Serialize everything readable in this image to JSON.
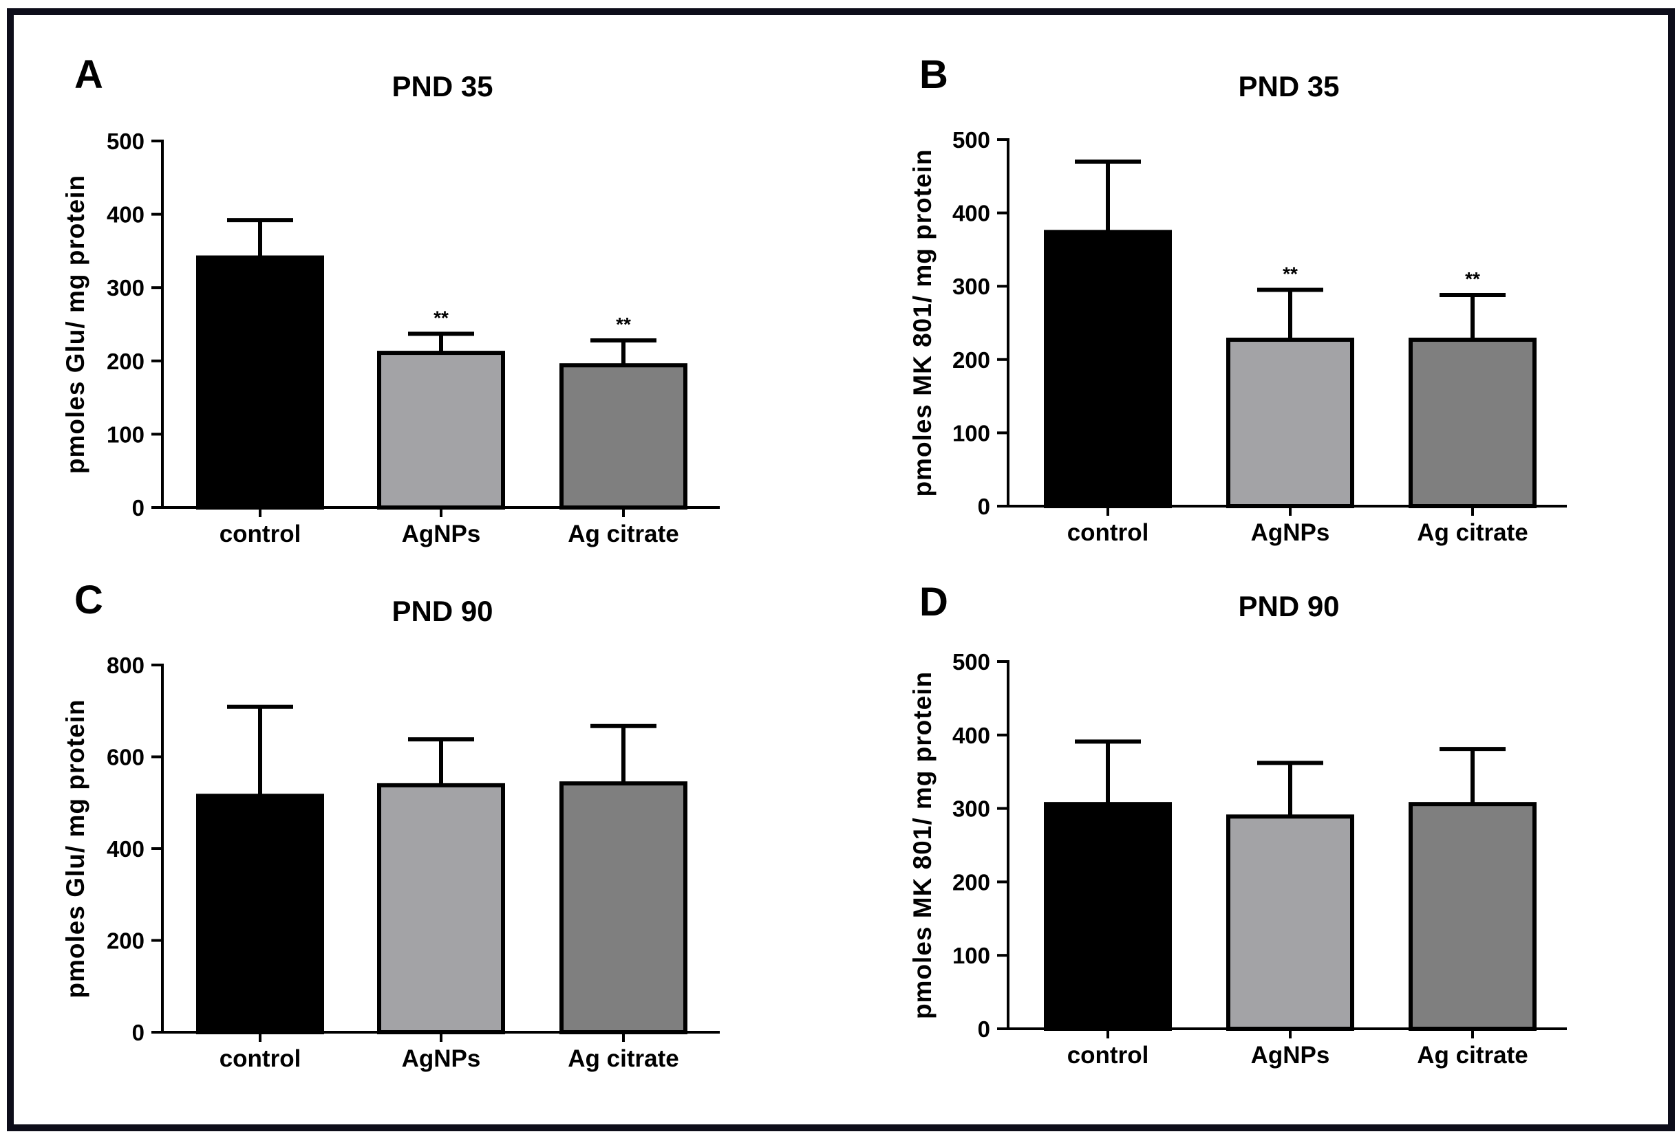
{
  "colors": {
    "frame": "#0d0d1a",
    "control": "#000000",
    "AgNPs": "#a3a3a6",
    "Ag citrate": "#7f7f7f",
    "stroke": "#000000"
  },
  "chart_data": [
    {
      "type": "bar",
      "panel": "A",
      "title": "PND 35",
      "ylabel": "pmoles Glu/ mg protein",
      "xlabel": "",
      "categories": [
        "control",
        "AgNPs",
        "Ag citrate"
      ],
      "values": [
        341,
        211,
        194
      ],
      "error_upper": [
        392,
        237,
        228
      ],
      "significance": [
        "",
        "**",
        "**"
      ],
      "ylim": [
        0,
        500
      ],
      "yticks": [
        0,
        100,
        200,
        300,
        400,
        500
      ],
      "legend": "none"
    },
    {
      "type": "bar",
      "panel": "B",
      "title": "PND 35",
      "ylabel": "pmoles MK 801/ mg protein",
      "xlabel": "",
      "categories": [
        "control",
        "AgNPs",
        "Ag citrate"
      ],
      "values": [
        374,
        227,
        227
      ],
      "error_upper": [
        470,
        295,
        288
      ],
      "significance": [
        "",
        "**",
        "**"
      ],
      "ylim": [
        0,
        500
      ],
      "yticks": [
        0,
        100,
        200,
        300,
        400,
        500
      ],
      "legend": "none"
    },
    {
      "type": "bar",
      "panel": "C",
      "title": "PND 90",
      "ylabel": "pmoles Glu/ mg protein",
      "xlabel": "",
      "categories": [
        "control",
        "AgNPs",
        "Ag citrate"
      ],
      "values": [
        515,
        538,
        542
      ],
      "error_upper": [
        709,
        638,
        667
      ],
      "significance": [
        "",
        "",
        ""
      ],
      "ylim": [
        0,
        800
      ],
      "yticks": [
        0,
        200,
        400,
        600,
        800
      ],
      "legend": "none"
    },
    {
      "type": "bar",
      "panel": "D",
      "title": "PND 90",
      "ylabel": "pmoles MK 801/ mg protein",
      "xlabel": "",
      "categories": [
        "control",
        "AgNPs",
        "Ag citrate"
      ],
      "values": [
        306,
        289,
        306
      ],
      "error_upper": [
        391,
        362,
        381
      ],
      "significance": [
        "",
        "",
        ""
      ],
      "ylim": [
        0,
        500
      ],
      "yticks": [
        0,
        100,
        200,
        300,
        400,
        500
      ],
      "legend": "none"
    }
  ]
}
